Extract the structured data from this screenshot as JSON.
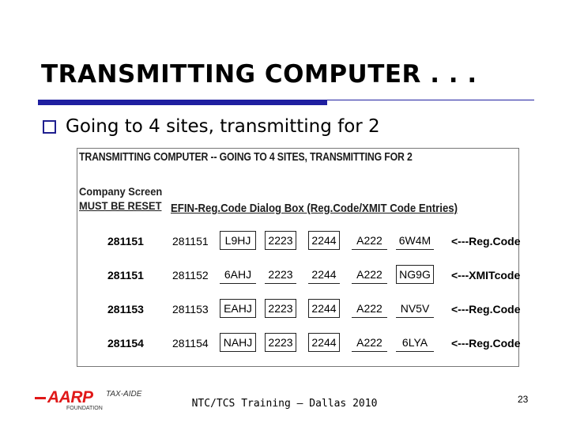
{
  "slide": {
    "title": "TRANSMITTING COMPUTER . . .",
    "bullet": "Going to 4 sites, transmitting for 2",
    "footer": "NTC/TCS Training – Dallas 2010",
    "page_number": "23",
    "colors": {
      "rule": "#1f1fa0",
      "logo": "#e01818"
    }
  },
  "panel": {
    "title": "TRANSMITTING COMPUTER -- GOING TO 4 SITES, TRANSMITTING FOR 2",
    "company_line1": "Company Screen",
    "company_line2": "MUST BE RESET",
    "dialog_heading": "EFIN-Reg.Code Dialog Box (Reg.Code/XMIT Code Entries)",
    "rows": [
      {
        "company_efin": "281151",
        "efin": "281151",
        "c1": "L9HJ",
        "c2": "2223",
        "c3": "2244",
        "c4": "A222",
        "c5": "6W4M",
        "label": "<---Reg.Code"
      },
      {
        "company_efin": "281151",
        "efin": "281152",
        "c1": "6AHJ",
        "c2": "2223",
        "c3": "2244",
        "c4": "A222",
        "c5": "NG9G",
        "label": "<---XMITcode"
      },
      {
        "company_efin": "281153",
        "efin": "281153",
        "c1": "EAHJ",
        "c2": "2223",
        "c3": "2244",
        "c4": "A222",
        "c5": "NV5V",
        "label": "<---Reg.Code"
      },
      {
        "company_efin": "281154",
        "efin": "281154",
        "c1": "NAHJ",
        "c2": "2223",
        "c3": "2244",
        "c4": "A222",
        "c5": "6LYA",
        "label": "<---Reg.Code"
      }
    ]
  },
  "logo": {
    "main": "AARP",
    "sub": "FOUNDATION",
    "taxaide": "TAX-AIDE"
  }
}
